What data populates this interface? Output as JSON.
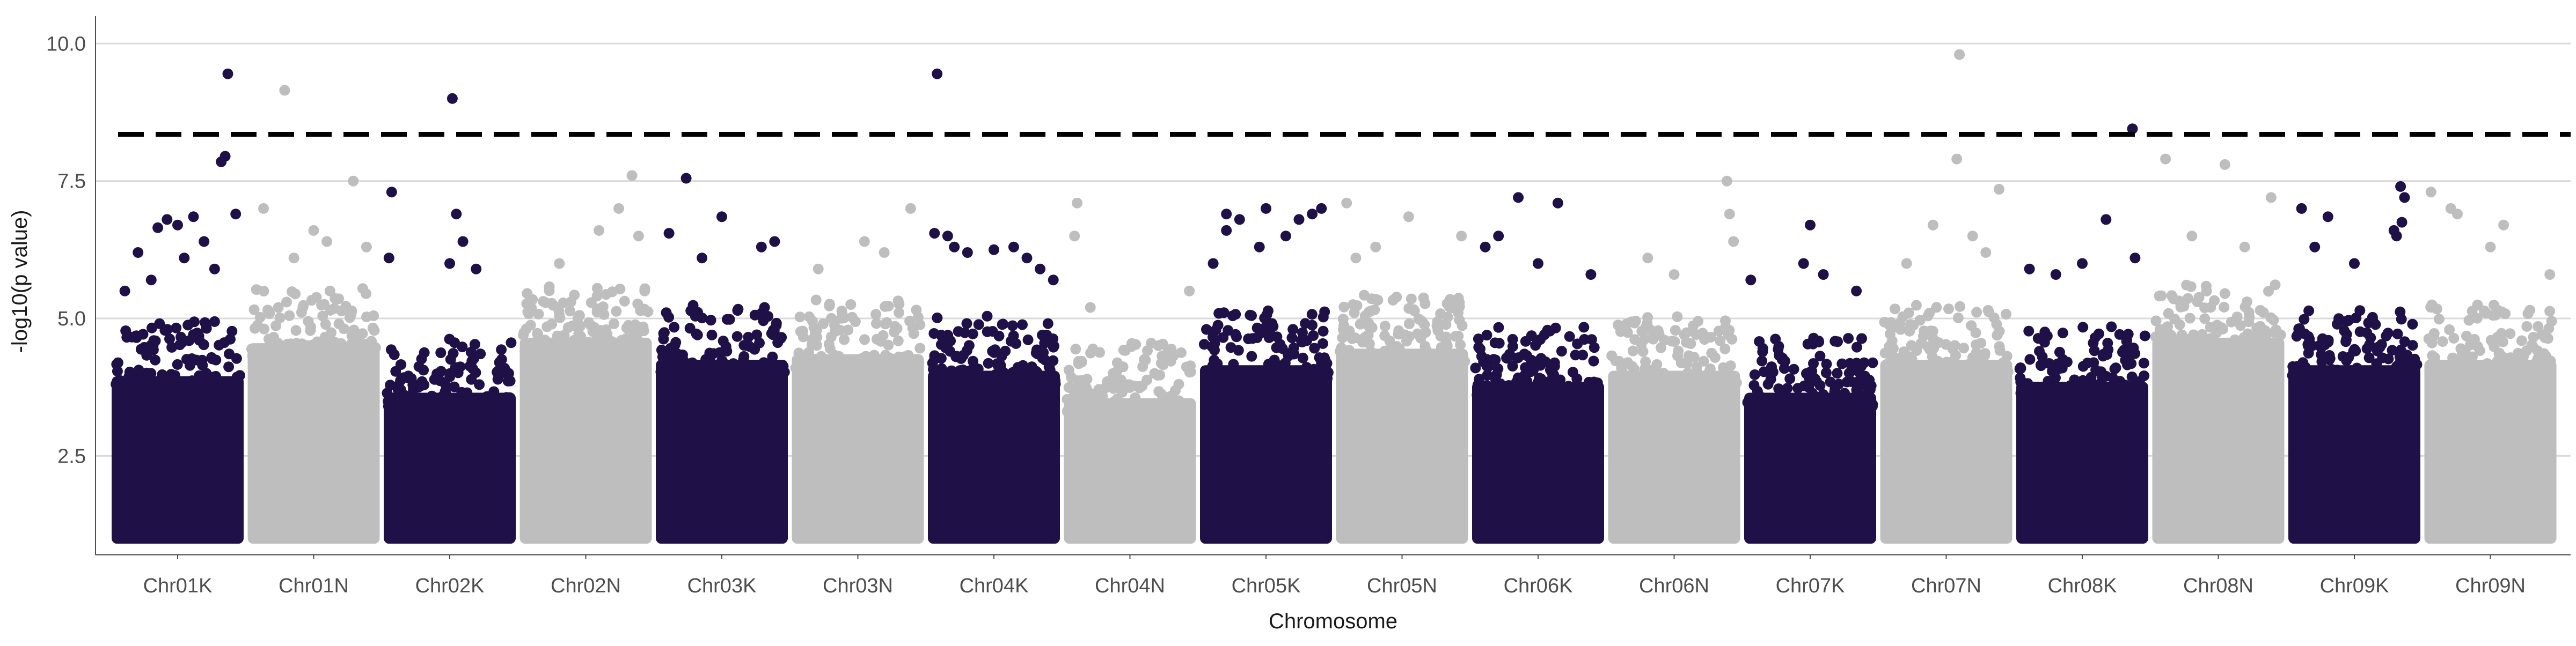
{
  "chart_data": {
    "type": "scatter",
    "subtype": "manhattan",
    "title": "",
    "xlabel": "Chromosome",
    "ylabel": "-log10(p value)",
    "ylim": [
      0.7,
      10.5
    ],
    "yticks": [
      2.5,
      5.0,
      7.5,
      10.0
    ],
    "ytick_labels": [
      "2.5",
      "5.0",
      "7.5",
      "10.0"
    ],
    "grid": "horizontal major gridlines",
    "legend": "none",
    "threshold": 8.35,
    "threshold_style": "black dashed line",
    "colors": {
      "dark": "#1f1147",
      "light": "#bebebe"
    },
    "categories": [
      "Chr01K",
      "Chr01N",
      "Chr02K",
      "Chr02N",
      "Chr03K",
      "Chr03N",
      "Chr04K",
      "Chr04N",
      "Chr05K",
      "Chr05N",
      "Chr06K",
      "Chr06N",
      "Chr07K",
      "Chr07N",
      "Chr08K",
      "Chr08N",
      "Chr09K",
      "Chr09N"
    ],
    "bulk_max": [
      4.3,
      4.9,
      4.0,
      5.0,
      4.6,
      4.7,
      4.4,
      3.9,
      4.5,
      4.8,
      4.2,
      4.4,
      4.0,
      4.6,
      4.2,
      5.0,
      4.5,
      4.6
    ],
    "top_points": [
      {
        "chr": "Chr01K",
        "pos": 0.88,
        "y": 9.45
      },
      {
        "chr": "Chr01K",
        "pos": 0.86,
        "y": 7.95
      },
      {
        "chr": "Chr01K",
        "pos": 0.83,
        "y": 7.85
      },
      {
        "chr": "Chr01K",
        "pos": 0.94,
        "y": 6.9
      },
      {
        "chr": "Chr01K",
        "pos": 0.62,
        "y": 6.85
      },
      {
        "chr": "Chr01K",
        "pos": 0.5,
        "y": 6.7
      },
      {
        "chr": "Chr01K",
        "pos": 0.42,
        "y": 6.8
      },
      {
        "chr": "Chr01K",
        "pos": 0.35,
        "y": 6.65
      },
      {
        "chr": "Chr01K",
        "pos": 0.2,
        "y": 6.2
      },
      {
        "chr": "Chr01K",
        "pos": 0.7,
        "y": 6.4
      },
      {
        "chr": "Chr01K",
        "pos": 0.55,
        "y": 6.1
      },
      {
        "chr": "Chr01K",
        "pos": 0.78,
        "y": 5.9
      },
      {
        "chr": "Chr01K",
        "pos": 0.1,
        "y": 5.5
      },
      {
        "chr": "Chr01K",
        "pos": 0.3,
        "y": 5.7
      },
      {
        "chr": "Chr01N",
        "pos": 0.28,
        "y": 9.15
      },
      {
        "chr": "Chr01N",
        "pos": 0.12,
        "y": 7.0
      },
      {
        "chr": "Chr01N",
        "pos": 0.8,
        "y": 7.5
      },
      {
        "chr": "Chr01N",
        "pos": 0.9,
        "y": 6.3
      },
      {
        "chr": "Chr01N",
        "pos": 0.5,
        "y": 6.6
      },
      {
        "chr": "Chr01N",
        "pos": 0.6,
        "y": 6.4
      },
      {
        "chr": "Chr01N",
        "pos": 0.35,
        "y": 6.1
      },
      {
        "chr": "Chr02K",
        "pos": 0.52,
        "y": 9.0
      },
      {
        "chr": "Chr02K",
        "pos": 0.06,
        "y": 7.3
      },
      {
        "chr": "Chr02K",
        "pos": 0.55,
        "y": 6.9
      },
      {
        "chr": "Chr02K",
        "pos": 0.04,
        "y": 6.1
      },
      {
        "chr": "Chr02K",
        "pos": 0.6,
        "y": 6.4
      },
      {
        "chr": "Chr02K",
        "pos": 0.7,
        "y": 5.9
      },
      {
        "chr": "Chr02K",
        "pos": 0.5,
        "y": 6.0
      },
      {
        "chr": "Chr02N",
        "pos": 0.85,
        "y": 7.6
      },
      {
        "chr": "Chr02N",
        "pos": 0.75,
        "y": 7.0
      },
      {
        "chr": "Chr02N",
        "pos": 0.6,
        "y": 6.6
      },
      {
        "chr": "Chr02N",
        "pos": 0.3,
        "y": 6.0
      },
      {
        "chr": "Chr02N",
        "pos": 0.9,
        "y": 6.5
      },
      {
        "chr": "Chr03K",
        "pos": 0.23,
        "y": 7.55
      },
      {
        "chr": "Chr03K",
        "pos": 0.1,
        "y": 6.55
      },
      {
        "chr": "Chr03K",
        "pos": 0.5,
        "y": 6.85
      },
      {
        "chr": "Chr03K",
        "pos": 0.8,
        "y": 6.3
      },
      {
        "chr": "Chr03K",
        "pos": 0.9,
        "y": 6.4
      },
      {
        "chr": "Chr03K",
        "pos": 0.35,
        "y": 6.1
      },
      {
        "chr": "Chr03N",
        "pos": 0.9,
        "y": 7.0
      },
      {
        "chr": "Chr03N",
        "pos": 0.55,
        "y": 6.4
      },
      {
        "chr": "Chr03N",
        "pos": 0.2,
        "y": 5.9
      },
      {
        "chr": "Chr03N",
        "pos": 0.7,
        "y": 6.2
      },
      {
        "chr": "Chr04K",
        "pos": 0.07,
        "y": 9.45
      },
      {
        "chr": "Chr04K",
        "pos": 0.05,
        "y": 6.55
      },
      {
        "chr": "Chr04K",
        "pos": 0.15,
        "y": 6.5
      },
      {
        "chr": "Chr04K",
        "pos": 0.2,
        "y": 6.3
      },
      {
        "chr": "Chr04K",
        "pos": 0.3,
        "y": 6.2
      },
      {
        "chr": "Chr04K",
        "pos": 0.5,
        "y": 6.25
      },
      {
        "chr": "Chr04K",
        "pos": 0.65,
        "y": 6.3
      },
      {
        "chr": "Chr04K",
        "pos": 0.75,
        "y": 6.1
      },
      {
        "chr": "Chr04K",
        "pos": 0.85,
        "y": 5.9
      },
      {
        "chr": "Chr04K",
        "pos": 0.95,
        "y": 5.7
      },
      {
        "chr": "Chr04N",
        "pos": 0.1,
        "y": 7.1
      },
      {
        "chr": "Chr04N",
        "pos": 0.08,
        "y": 6.5
      },
      {
        "chr": "Chr04N",
        "pos": 0.95,
        "y": 5.5
      },
      {
        "chr": "Chr04N",
        "pos": 0.2,
        "y": 5.2
      },
      {
        "chr": "Chr05K",
        "pos": 0.2,
        "y": 6.9
      },
      {
        "chr": "Chr05K",
        "pos": 0.3,
        "y": 6.8
      },
      {
        "chr": "Chr05K",
        "pos": 0.2,
        "y": 6.6
      },
      {
        "chr": "Chr05K",
        "pos": 0.5,
        "y": 7.0
      },
      {
        "chr": "Chr05K",
        "pos": 0.75,
        "y": 6.8
      },
      {
        "chr": "Chr05K",
        "pos": 0.85,
        "y": 6.9
      },
      {
        "chr": "Chr05K",
        "pos": 0.92,
        "y": 7.0
      },
      {
        "chr": "Chr05K",
        "pos": 0.45,
        "y": 6.3
      },
      {
        "chr": "Chr05K",
        "pos": 0.65,
        "y": 6.5
      },
      {
        "chr": "Chr05K",
        "pos": 0.1,
        "y": 6.0
      },
      {
        "chr": "Chr05N",
        "pos": 0.08,
        "y": 7.1
      },
      {
        "chr": "Chr05N",
        "pos": 0.55,
        "y": 6.85
      },
      {
        "chr": "Chr05N",
        "pos": 0.95,
        "y": 6.5
      },
      {
        "chr": "Chr05N",
        "pos": 0.3,
        "y": 6.3
      },
      {
        "chr": "Chr05N",
        "pos": 0.15,
        "y": 6.1
      },
      {
        "chr": "Chr06K",
        "pos": 0.35,
        "y": 7.2
      },
      {
        "chr": "Chr06K",
        "pos": 0.65,
        "y": 7.1
      },
      {
        "chr": "Chr06K",
        "pos": 0.2,
        "y": 6.5
      },
      {
        "chr": "Chr06K",
        "pos": 0.1,
        "y": 6.3
      },
      {
        "chr": "Chr06K",
        "pos": 0.5,
        "y": 6.0
      },
      {
        "chr": "Chr06K",
        "pos": 0.9,
        "y": 5.8
      },
      {
        "chr": "Chr06N",
        "pos": 0.9,
        "y": 7.5
      },
      {
        "chr": "Chr06N",
        "pos": 0.92,
        "y": 6.9
      },
      {
        "chr": "Chr06N",
        "pos": 0.95,
        "y": 6.4
      },
      {
        "chr": "Chr06N",
        "pos": 0.3,
        "y": 6.1
      },
      {
        "chr": "Chr06N",
        "pos": 0.5,
        "y": 5.8
      },
      {
        "chr": "Chr07K",
        "pos": 0.5,
        "y": 6.7
      },
      {
        "chr": "Chr07K",
        "pos": 0.45,
        "y": 6.0
      },
      {
        "chr": "Chr07K",
        "pos": 0.6,
        "y": 5.8
      },
      {
        "chr": "Chr07K",
        "pos": 0.85,
        "y": 5.5
      },
      {
        "chr": "Chr07K",
        "pos": 0.05,
        "y": 5.7
      },
      {
        "chr": "Chr07N",
        "pos": 0.6,
        "y": 9.8
      },
      {
        "chr": "Chr07N",
        "pos": 0.58,
        "y": 7.9
      },
      {
        "chr": "Chr07N",
        "pos": 0.9,
        "y": 7.35
      },
      {
        "chr": "Chr07N",
        "pos": 0.4,
        "y": 6.7
      },
      {
        "chr": "Chr07N",
        "pos": 0.7,
        "y": 6.5
      },
      {
        "chr": "Chr07N",
        "pos": 0.8,
        "y": 6.2
      },
      {
        "chr": "Chr07N",
        "pos": 0.2,
        "y": 6.0
      },
      {
        "chr": "Chr08K",
        "pos": 0.88,
        "y": 8.45
      },
      {
        "chr": "Chr08K",
        "pos": 0.68,
        "y": 6.8
      },
      {
        "chr": "Chr08K",
        "pos": 0.9,
        "y": 6.1
      },
      {
        "chr": "Chr08K",
        "pos": 0.5,
        "y": 6.0
      },
      {
        "chr": "Chr08K",
        "pos": 0.1,
        "y": 5.9
      },
      {
        "chr": "Chr08K",
        "pos": 0.3,
        "y": 5.8
      },
      {
        "chr": "Chr08N",
        "pos": 0.1,
        "y": 7.9
      },
      {
        "chr": "Chr08N",
        "pos": 0.55,
        "y": 7.8
      },
      {
        "chr": "Chr08N",
        "pos": 0.9,
        "y": 7.2
      },
      {
        "chr": "Chr08N",
        "pos": 0.3,
        "y": 6.5
      },
      {
        "chr": "Chr08N",
        "pos": 0.7,
        "y": 6.3
      },
      {
        "chr": "Chr09K",
        "pos": 0.1,
        "y": 7.0
      },
      {
        "chr": "Chr09K",
        "pos": 0.85,
        "y": 7.4
      },
      {
        "chr": "Chr09K",
        "pos": 0.88,
        "y": 7.2
      },
      {
        "chr": "Chr09K",
        "pos": 0.8,
        "y": 6.6
      },
      {
        "chr": "Chr09K",
        "pos": 0.82,
        "y": 6.5
      },
      {
        "chr": "Chr09K",
        "pos": 0.86,
        "y": 6.75
      },
      {
        "chr": "Chr09K",
        "pos": 0.3,
        "y": 6.85
      },
      {
        "chr": "Chr09K",
        "pos": 0.2,
        "y": 6.3
      },
      {
        "chr": "Chr09K",
        "pos": 0.5,
        "y": 6.0
      },
      {
        "chr": "Chr09N",
        "pos": 0.05,
        "y": 7.3
      },
      {
        "chr": "Chr09N",
        "pos": 0.2,
        "y": 7.0
      },
      {
        "chr": "Chr09N",
        "pos": 0.25,
        "y": 6.9
      },
      {
        "chr": "Chr09N",
        "pos": 0.6,
        "y": 6.7
      },
      {
        "chr": "Chr09N",
        "pos": 0.5,
        "y": 6.3
      },
      {
        "chr": "Chr09N",
        "pos": 0.95,
        "y": 5.8
      }
    ]
  }
}
